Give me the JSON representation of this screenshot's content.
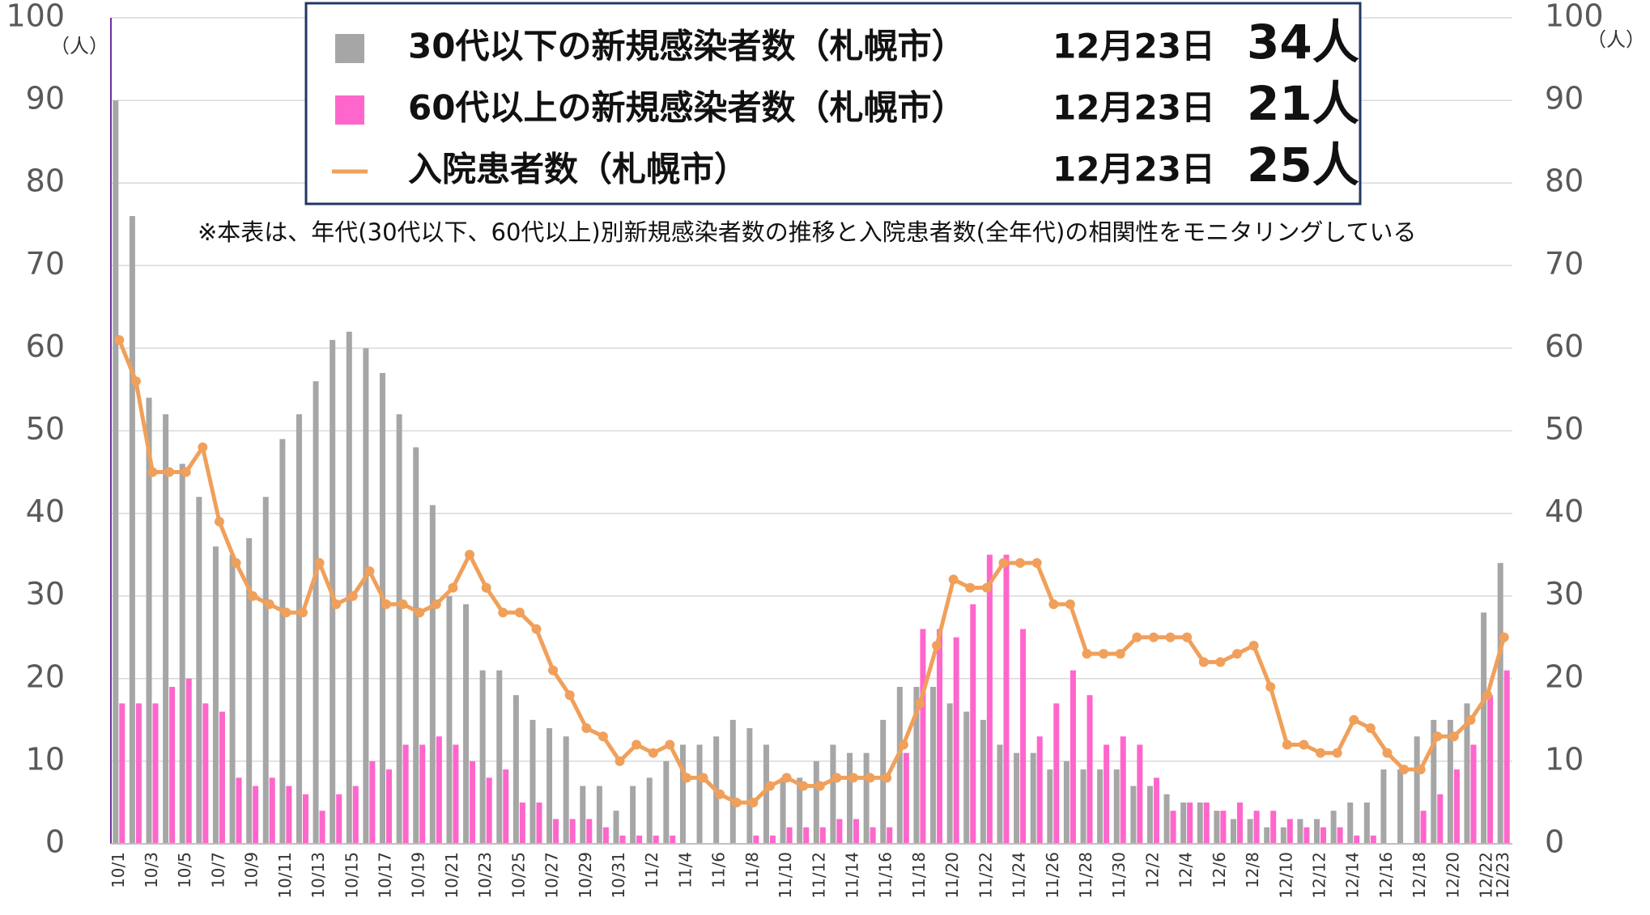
{
  "chart_data": {
    "type": "bar_line",
    "categories": [
      "10/1",
      null,
      "10/3",
      null,
      "10/5",
      null,
      "10/7",
      null,
      "10/9",
      null,
      "10/11",
      null,
      "10/13",
      null,
      "10/15",
      null,
      "10/17",
      null,
      "10/19",
      null,
      "10/21",
      null,
      "10/23",
      null,
      "10/25",
      null,
      "10/27",
      null,
      "10/29",
      null,
      "10/31",
      null,
      "11/2",
      null,
      "11/4",
      null,
      "11/6",
      null,
      "11/8",
      null,
      "11/10",
      null,
      "11/12",
      null,
      "11/14",
      null,
      "11/16",
      null,
      "11/18",
      null,
      "11/20",
      null,
      "11/22",
      null,
      "11/24",
      null,
      "11/26",
      null,
      "11/28",
      null,
      "11/30",
      null,
      "12/2",
      null,
      "12/4",
      null,
      "12/6",
      null,
      "12/8",
      null,
      "12/10",
      null,
      "12/12",
      null,
      "12/14",
      null,
      "12/16",
      null,
      "12/18",
      null,
      "12/20",
      null,
      "12/22",
      "12/23"
    ],
    "series": [
      {
        "name": "30代以下の新規感染者数（札幌市）",
        "kind": "bar",
        "color": "#a6a6a6",
        "latest_date": "12月23日",
        "latest_label": "34人",
        "values": [
          90,
          76,
          54,
          52,
          46,
          42,
          36,
          35,
          37,
          42,
          49,
          52,
          56,
          61,
          62,
          60,
          57,
          52,
          48,
          41,
          30,
          29,
          21,
          21,
          18,
          15,
          14,
          13,
          7,
          7,
          4,
          7,
          8,
          10,
          12,
          12,
          13,
          15,
          14,
          12,
          8,
          8,
          10,
          12,
          11,
          11,
          15,
          19,
          19,
          19,
          17,
          16,
          15,
          12,
          11,
          11,
          9,
          10,
          9,
          9,
          9,
          7,
          7,
          6,
          5,
          5,
          4,
          3,
          3,
          2,
          2,
          3,
          3,
          4,
          5,
          5,
          9,
          9,
          13,
          15,
          15,
          17,
          28,
          34
        ]
      },
      {
        "name": "60代以上の新規感染者数（札幌市）",
        "kind": "bar",
        "color": "#ff66cc",
        "latest_date": "12月23日",
        "latest_label": "21人",
        "values": [
          17,
          17,
          17,
          19,
          20,
          17,
          16,
          8,
          7,
          8,
          7,
          6,
          4,
          6,
          7,
          10,
          9,
          12,
          12,
          13,
          12,
          10,
          8,
          9,
          5,
          5,
          3,
          3,
          3,
          2,
          1,
          1,
          1,
          1,
          0,
          0,
          0,
          0,
          1,
          1,
          2,
          2,
          2,
          3,
          3,
          2,
          2,
          11,
          26,
          26,
          25,
          29,
          35,
          35,
          26,
          13,
          17,
          21,
          18,
          12,
          13,
          12,
          8,
          4,
          5,
          5,
          4,
          5,
          4,
          4,
          3,
          2,
          2,
          2,
          1,
          1,
          0,
          0,
          4,
          6,
          9,
          12,
          18,
          21
        ]
      },
      {
        "name": "入院患者数（札幌市）",
        "kind": "line",
        "axis": "y2",
        "color": "#f0a05a",
        "latest_date": "12月23日",
        "latest_label": "25人",
        "values": [
          61,
          56,
          45,
          45,
          45,
          48,
          39,
          34,
          30,
          29,
          28,
          28,
          34,
          29,
          30,
          33,
          29,
          29,
          28,
          29,
          31,
          35,
          31,
          28,
          28,
          26,
          21,
          18,
          14,
          13,
          10,
          12,
          11,
          12,
          8,
          8,
          6,
          5,
          5,
          7,
          8,
          7,
          7,
          8,
          8,
          8,
          8,
          12,
          17,
          24,
          32,
          31,
          31,
          34,
          34,
          34,
          29,
          29,
          23,
          23,
          23,
          25,
          25,
          25,
          25,
          22,
          22,
          23,
          24,
          19,
          12,
          12,
          11,
          11,
          15,
          14,
          11,
          9,
          9,
          13,
          13,
          15,
          18,
          25
        ]
      }
    ],
    "ylim": [
      0,
      100
    ],
    "yticks": [
      0,
      10,
      20,
      30,
      40,
      50,
      60,
      70,
      80,
      90,
      100
    ],
    "y2lim": [
      0,
      100
    ],
    "y2ticks": [
      0,
      10,
      20,
      30,
      40,
      50,
      60,
      70,
      80,
      90,
      100
    ],
    "y_unit": "（人）",
    "y2_unit": "（人）",
    "grid": true,
    "note": "※本表は、年代(30代以下、60代以上)別新規感染者数の推移と入院患者数(全年代)の相関性をモニタリングしている"
  }
}
